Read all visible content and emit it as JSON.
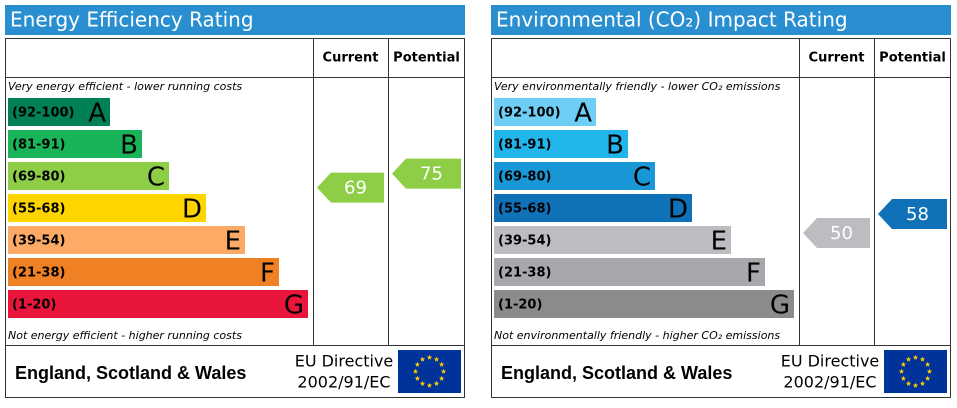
{
  "chart_data": [
    {
      "type": "rating",
      "title": "Energy Efficiency Rating",
      "columns": [
        "Current",
        "Potential"
      ],
      "top_note": "Very energy efficient - lower running costs",
      "bottom_note": "Not energy efficient - higher running costs",
      "bands": [
        {
          "range": "(92-100)",
          "letter": "A",
          "color": "#008054"
        },
        {
          "range": "(81-91)",
          "letter": "B",
          "color": "#19b459"
        },
        {
          "range": "(69-80)",
          "letter": "C",
          "color": "#8dce46"
        },
        {
          "range": "(55-68)",
          "letter": "D",
          "color": "#ffd500"
        },
        {
          "range": "(39-54)",
          "letter": "E",
          "color": "#fcaa65"
        },
        {
          "range": "(21-38)",
          "letter": "F",
          "color": "#ef8023"
        },
        {
          "range": "(1-20)",
          "letter": "G",
          "color": "#e9153b"
        }
      ],
      "current": 69,
      "potential": 75,
      "footer": {
        "region": "England, Scotland & Wales",
        "directive": "EU Directive",
        "code": "2002/91/EC"
      }
    },
    {
      "type": "rating",
      "title": "Environmental (CO₂) Impact Rating",
      "columns": [
        "Current",
        "Potential"
      ],
      "top_note": "Very environmentally friendly - lower CO₂ emissions",
      "bottom_note": "Not environmentally friendly - higher CO₂ emissions",
      "bands": [
        {
          "range": "(92-100)",
          "letter": "A",
          "color": "#6dcff6"
        },
        {
          "range": "(81-91)",
          "letter": "B",
          "color": "#22b5ec"
        },
        {
          "range": "(69-80)",
          "letter": "C",
          "color": "#1a97d6"
        },
        {
          "range": "(55-68)",
          "letter": "D",
          "color": "#0f72b9"
        },
        {
          "range": "(39-54)",
          "letter": "E",
          "color": "#bbbdc0"
        },
        {
          "range": "(21-38)",
          "letter": "F",
          "color": "#a6a8ab"
        },
        {
          "range": "(1-20)",
          "letter": "G",
          "color": "#898b8d"
        }
      ],
      "current": 50,
      "potential": 58,
      "footer": {
        "region": "England, Scotland & Wales",
        "directive": "EU Directive",
        "code": "2002/91/EC"
      }
    }
  ]
}
